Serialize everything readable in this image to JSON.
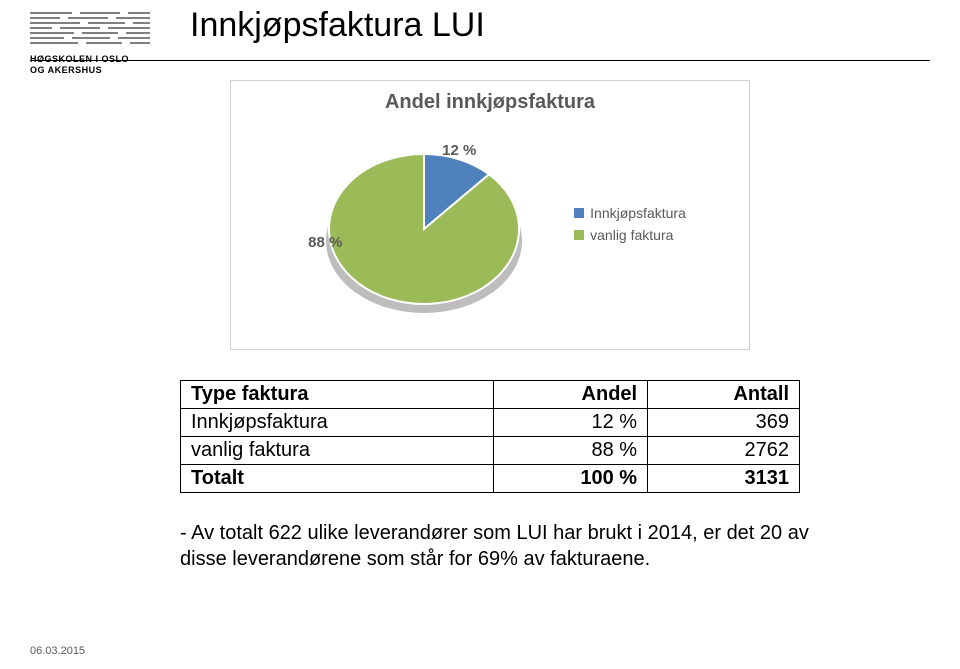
{
  "logo": {
    "line1": "HØGSKOLEN I OSLO",
    "line2": "OG AKERSHUS",
    "line_colors": [
      "#000000"
    ]
  },
  "title": "Innkjøpsfaktura LUI",
  "chart": {
    "type": "pie",
    "title": "Andel innkjøpsfaktura",
    "title_fontsize": 20,
    "title_color": "#595959",
    "background_color": "#ffffff",
    "border_color": "#d0d0d0",
    "series": [
      {
        "label": "Innkjøpsfaktura",
        "value": 12,
        "display": "12 %",
        "color": "#4f81bd"
      },
      {
        "label": "vanlig faktura",
        "value": 88,
        "display": "88 %",
        "color": "#9bbb59"
      }
    ],
    "label_fontsize": 15,
    "label_color": "#595959",
    "legend_fontsize": 14,
    "legend_marker": "square",
    "pie_start_angle_deg": -90,
    "pie_outline_color": "#ffffff",
    "pie_outline_width": 2,
    "shadow_color": "#bdbdbd"
  },
  "table": {
    "columns": [
      "Type faktura",
      "Andel",
      "Antall"
    ],
    "rows": [
      [
        "Innkjøpsfaktura",
        "12 %",
        "369"
      ],
      [
        "vanlig faktura",
        "88 %",
        "2762"
      ]
    ],
    "total_row": [
      "Totalt",
      "100 %",
      "3131"
    ],
    "border_color": "#000000",
    "fontsize": 20
  },
  "note": "- Av totalt 622 ulike leverandører som LUI har brukt i 2014, er det 20 av disse leverandørene som står for 69% av fakturaene.",
  "footer_date": "06.03.2015"
}
